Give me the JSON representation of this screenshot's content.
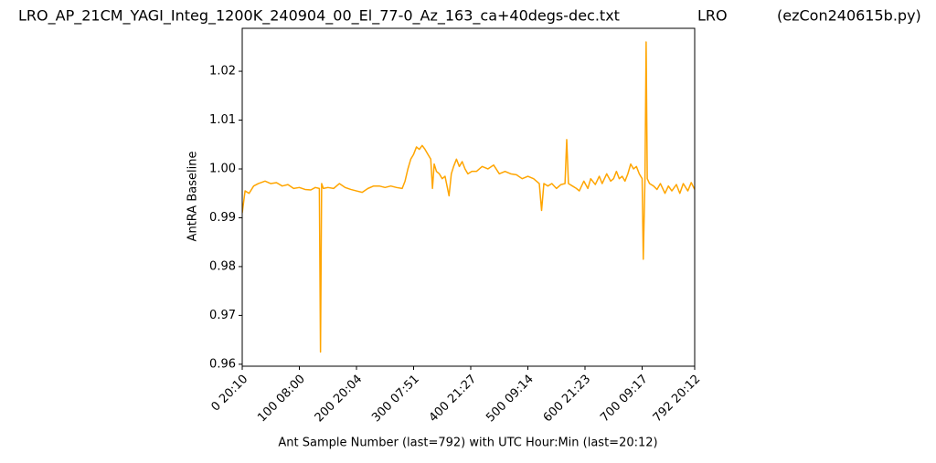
{
  "chart_data": {
    "type": "line",
    "title": "LRO_AP_21CM_YAGI_Integ_1200K_240904_00_El_77-0_Az_163_ca+40degs-dec.txt",
    "subtitle": "LRO",
    "annotation": "(ezCon240615b.py)",
    "x_label": "Ant Sample Number (last=792) with UTC Hour:Min (last=20:12)",
    "y_label": "AntRA Baseline",
    "xlim": [
      0,
      792
    ],
    "ylim": [
      0.9596,
      1.0288
    ],
    "xticks": [
      {
        "value": 0,
        "label": "0  20:10"
      },
      {
        "value": 100,
        "label": "100  08:00"
      },
      {
        "value": 200,
        "label": "200  20:04"
      },
      {
        "value": 300,
        "label": "300  07:51"
      },
      {
        "value": 400,
        "label": "400  21:27"
      },
      {
        "value": 500,
        "label": "500  09:14"
      },
      {
        "value": 600,
        "label": "600  21:23"
      },
      {
        "value": 700,
        "label": "700  09:17"
      },
      {
        "value": 792,
        "label": "792  20:12"
      }
    ],
    "yticks": [
      0.96,
      0.97,
      0.98,
      0.99,
      {
        "value": 1,
        "label": "1.00"
      },
      1.01,
      1.02
    ],
    "grid": false,
    "series": [
      {
        "name": "AntRA Baseline",
        "color": "orange",
        "x": [
          0,
          5,
          12,
          20,
          28,
          40,
          50,
          60,
          70,
          80,
          90,
          100,
          110,
          120,
          128,
          135,
          137,
          139,
          142,
          150,
          160,
          170,
          180,
          190,
          200,
          210,
          220,
          230,
          240,
          250,
          260,
          270,
          280,
          285,
          290,
          295,
          300,
          305,
          310,
          315,
          320,
          325,
          330,
          333,
          336,
          340,
          345,
          350,
          355,
          362,
          366,
          370,
          375,
          380,
          385,
          390,
          395,
          402,
          410,
          420,
          430,
          440,
          450,
          460,
          470,
          480,
          490,
          500,
          510,
          520,
          524,
          528,
          535,
          542,
          550,
          558,
          565,
          568,
          571,
          578,
          585,
          590,
          598,
          605,
          610,
          618,
          625,
          630,
          638,
          645,
          650,
          655,
          660,
          665,
          670,
          675,
          680,
          685,
          690,
          695,
          700,
          702,
          705,
          707,
          709,
          713,
          720,
          726,
          732,
          740,
          746,
          752,
          760,
          766,
          772,
          780,
          786,
          792
        ],
        "values": [
          0.991,
          0.9955,
          0.995,
          0.9965,
          0.997,
          0.9975,
          0.997,
          0.9972,
          0.9965,
          0.9968,
          0.996,
          0.9962,
          0.9958,
          0.9957,
          0.9962,
          0.996,
          0.9625,
          0.997,
          0.996,
          0.9962,
          0.996,
          0.997,
          0.9962,
          0.9958,
          0.9955,
          0.9952,
          0.996,
          0.9965,
          0.9965,
          0.9962,
          0.9965,
          0.9962,
          0.996,
          0.9975,
          1.0,
          1.002,
          1.003,
          1.0045,
          1.004,
          1.0048,
          1.004,
          1.003,
          1.002,
          0.996,
          1.001,
          0.9995,
          0.999,
          0.998,
          0.9985,
          0.9945,
          0.999,
          1.0005,
          1.002,
          1.0005,
          1.0015,
          1.0,
          0.999,
          0.9995,
          0.9995,
          1.0005,
          1.0,
          1.0008,
          0.999,
          0.9995,
          0.999,
          0.9988,
          0.998,
          0.9985,
          0.998,
          0.997,
          0.9915,
          0.997,
          0.9965,
          0.997,
          0.996,
          0.9968,
          0.997,
          1.006,
          0.997,
          0.9965,
          0.996,
          0.9955,
          0.9975,
          0.996,
          0.998,
          0.9968,
          0.9985,
          0.997,
          0.999,
          0.9975,
          0.998,
          0.9995,
          0.998,
          0.9985,
          0.9975,
          0.999,
          1.001,
          1.0,
          1.0005,
          0.999,
          0.998,
          0.9815,
          0.998,
          1.026,
          0.998,
          0.997,
          0.9965,
          0.9958,
          0.997,
          0.995,
          0.9965,
          0.9955,
          0.9968,
          0.995,
          0.997,
          0.9955,
          0.9972,
          0.9958
        ]
      }
    ]
  }
}
